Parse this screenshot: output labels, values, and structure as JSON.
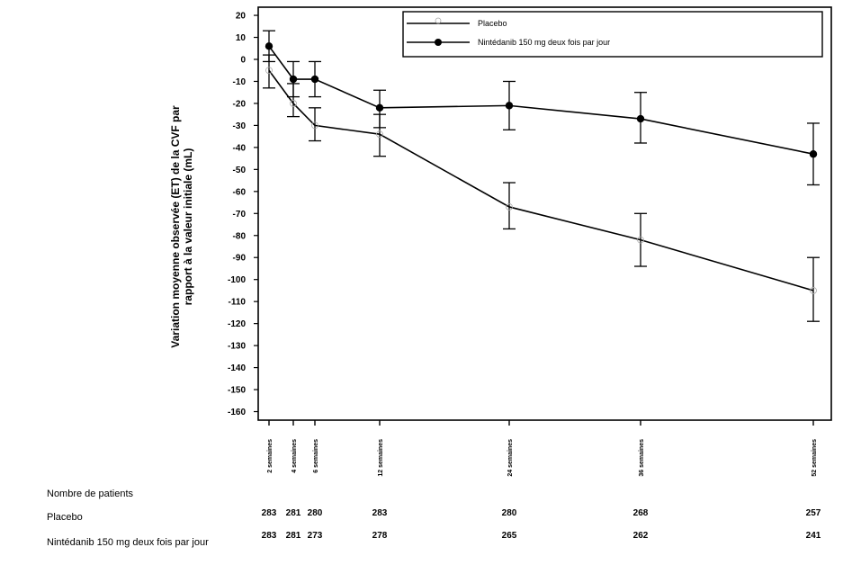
{
  "chart_data": {
    "type": "line",
    "ylabel": "Variation moyenne observée (ET) de la CVF par rapport à la valeur initiale (mL)",
    "ylim": [
      -160,
      20
    ],
    "yticks": [
      20,
      10,
      0,
      -10,
      -20,
      -30,
      -40,
      -50,
      -60,
      -70,
      -80,
      -90,
      -100,
      -110,
      -120,
      -130,
      -140,
      -150,
      -160
    ],
    "x": [
      2,
      4,
      6,
      12,
      24,
      36,
      52
    ],
    "xlabels": [
      "2 semaines",
      "4 semaines",
      "6 semaines",
      "12 semaines",
      "24 semaines",
      "36 semaines",
      "52 semaines"
    ],
    "legend_position": "top-right",
    "series": [
      {
        "name": "Placebo",
        "marker": "open-circle",
        "color": "#000000",
        "values": [
          -5,
          -20,
          -30,
          -34,
          -67,
          -82,
          -105
        ],
        "err_low": [
          -13,
          -26,
          -37,
          -44,
          -77,
          -94,
          -119
        ],
        "err_high": [
          2,
          -11,
          -22,
          -25,
          -56,
          -70,
          -90
        ]
      },
      {
        "name": "Nintédanib 150 mg deux fois par jour",
        "marker": "filled-circle",
        "color": "#000000",
        "values": [
          6,
          -9,
          -9,
          -22,
          -21,
          -27,
          -43
        ],
        "err_low": [
          -1,
          -17,
          -17,
          -31,
          -32,
          -38,
          -57
        ],
        "err_high": [
          13,
          -1,
          -1,
          -14,
          -10,
          -15,
          -29
        ]
      }
    ]
  },
  "patients": {
    "heading": "Nombre de patients",
    "rows": [
      {
        "label": "Placebo",
        "values": [
          "283",
          "281",
          "280",
          "283",
          "280",
          "268",
          "257"
        ]
      },
      {
        "label": "Nintédanib 150 mg deux fois par jour",
        "values": [
          "283",
          "281",
          "273",
          "278",
          "265",
          "262",
          "241"
        ]
      }
    ]
  }
}
